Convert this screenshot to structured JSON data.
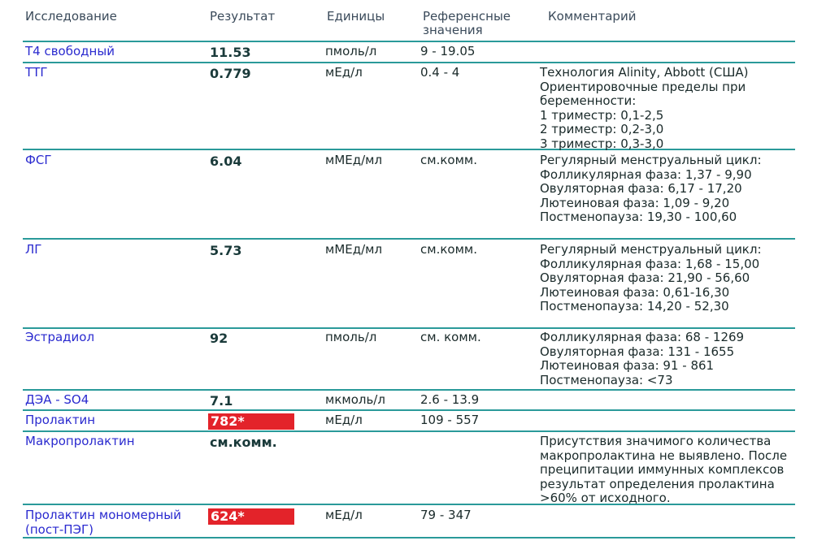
{
  "headers": {
    "test": "Исследование",
    "result": "Результат",
    "units": "Единицы",
    "reference": "Референсные значения",
    "comment": "Комментарий"
  },
  "rows": [
    {
      "name": [
        "Т4 свободный"
      ],
      "result": "11.53",
      "flag": false,
      "units": "пмоль/л",
      "reference": "9 - 19.05",
      "comment": []
    },
    {
      "name": [
        "ТТГ"
      ],
      "result": "0.779",
      "flag": false,
      "units": "мЕд/л",
      "reference": "0.4 - 4",
      "comment": [
        "Технология Alinity, Abbott (США)",
        "Ориентировочные пределы при",
        "беременности:",
        "1 триместр: 0,1-2,5",
        "2 триместр: 0,2-3,0",
        "3 триместр: 0,3-3,0"
      ]
    },
    {
      "name": [
        "ФСГ"
      ],
      "result": "6.04",
      "flag": false,
      "units": "мМЕд/мл",
      "reference": "см.комм.",
      "comment": [
        "Регулярный менструальный цикл:",
        "Фолликулярная фаза: 1,37 - 9,90",
        "Овуляторная фаза: 6,17 - 17,20",
        "Лютеиновая фаза: 1,09 - 9,20",
        "Постменопауза: 19,30 - 100,60"
      ]
    },
    {
      "name": [
        "ЛГ"
      ],
      "result": "5.73",
      "flag": false,
      "units": "мМЕд/мл",
      "reference": "см.комм.",
      "comment": [
        "Регулярный менструальный цикл:",
        "Фолликулярная фаза: 1,68 - 15,00",
        "Овуляторная фаза: 21,90 - 56,60",
        "Лютеиновая фаза: 0,61-16,30",
        "Постменопауза: 14,20 - 52,30"
      ]
    },
    {
      "name": [
        "Эстрадиол"
      ],
      "result": "92",
      "flag": false,
      "units": "пмоль/л",
      "reference": "см. комм.",
      "comment": [
        "Фолликулярная фаза: 68 - 1269",
        "Овуляторная фаза: 131 - 1655",
        "Лютеиновая фаза: 91 - 861",
        "Постменопауза: <73"
      ]
    },
    {
      "name": [
        "ДЭА - SO4"
      ],
      "result": "7.1",
      "flag": false,
      "units": "мкмоль/л",
      "reference": "2.6 - 13.9",
      "comment": []
    },
    {
      "name": [
        "Пролактин"
      ],
      "result": "782*",
      "flag": true,
      "units": "мЕд/л",
      "reference": "109 - 557",
      "comment": []
    },
    {
      "name": [
        "Макропролактин"
      ],
      "result": "см.комм.",
      "flag": false,
      "units": "",
      "reference": "",
      "comment": [
        "Присутствия значимого количества",
        "макропролактина не выявлено. После",
        "преципитации иммунных комплексов",
        "результат определения пролактина",
        ">60% от исходного."
      ]
    },
    {
      "name": [
        "Пролактин мономерный",
        "(пост-ПЭГ)"
      ],
      "result": "624*",
      "flag": true,
      "units": "мЕд/л",
      "reference": "79 - 347",
      "comment": []
    }
  ]
}
